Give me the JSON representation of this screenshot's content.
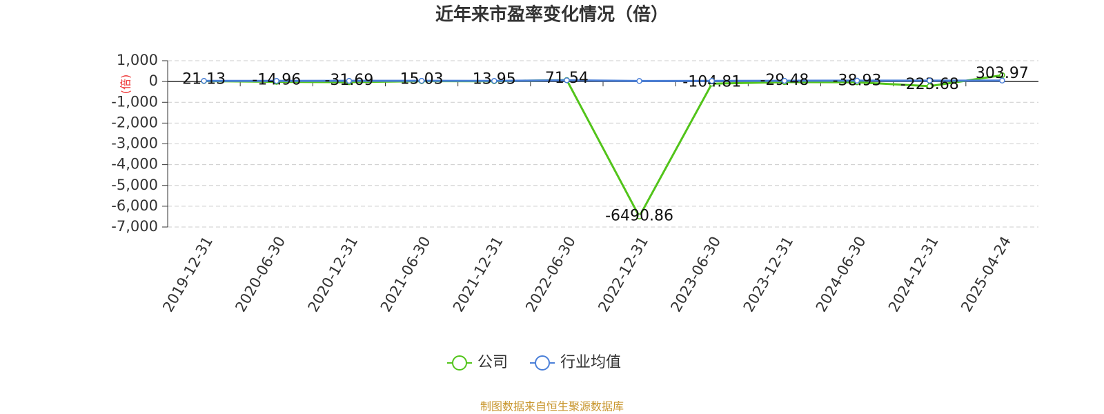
{
  "chart_data": {
    "type": "line",
    "title": "近年来市盈率变化情况（倍）",
    "y_label": "(倍)",
    "source": "制图数据来自恒生聚源数据库",
    "categories": [
      "2019-12-31",
      "2020-06-30",
      "2020-12-31",
      "2021-06-30",
      "2021-12-31",
      "2022-06-30",
      "2022-12-31",
      "2023-06-30",
      "2023-12-31",
      "2024-06-30",
      "2024-12-31",
      "2025-04-24"
    ],
    "series": [
      {
        "name": "公司",
        "color": "#52c41a",
        "values": [
          21.13,
          -14.96,
          -31.69,
          15.03,
          13.95,
          71.54,
          -6490.86,
          -104.81,
          -29.48,
          -38.93,
          -223.68,
          303.97
        ]
      },
      {
        "name": "行业均值",
        "color": "#4a7fd8",
        "values": [
          30,
          28,
          35,
          32,
          30,
          60,
          25,
          28,
          35,
          40,
          42,
          45
        ]
      }
    ],
    "ylim": [
      -7000,
      1000
    ],
    "yticks": [
      {
        "value": 1000,
        "label": "1,000"
      },
      0,
      {
        "value": -1000,
        "label": "-1,000"
      },
      {
        "value": -2000,
        "label": "-2,000"
      },
      {
        "value": -3000,
        "label": "-3,000"
      },
      {
        "value": -4000,
        "label": "-4,000"
      },
      {
        "value": -5000,
        "label": "-5,000"
      },
      {
        "value": -6000,
        "label": "-6,000"
      },
      {
        "value": -7000,
        "label": "-7,000"
      }
    ],
    "grid": true,
    "legend": "bottom"
  }
}
